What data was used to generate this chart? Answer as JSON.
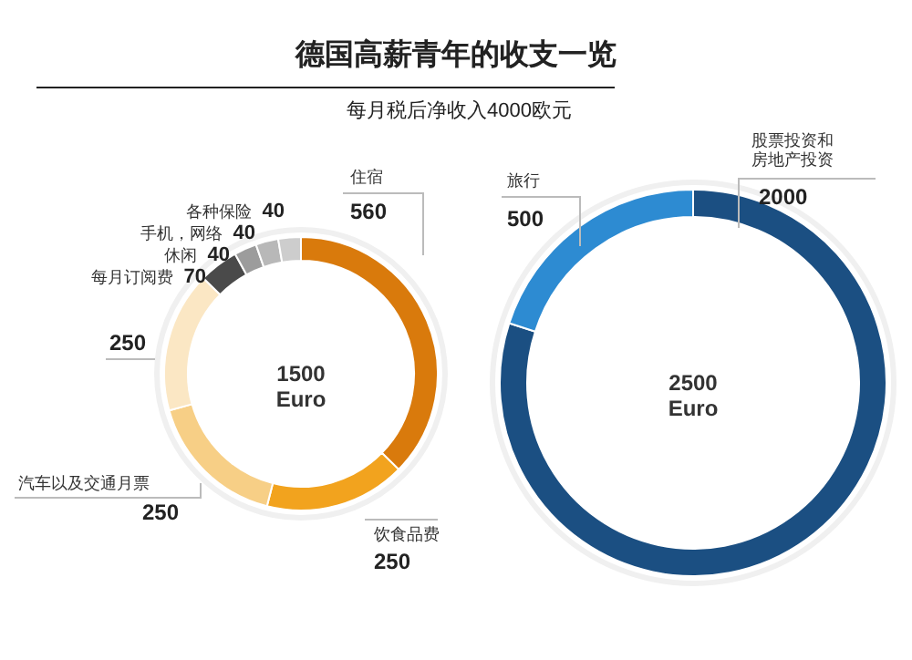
{
  "chart_data": [
    {
      "type": "donut",
      "title": "德国高薪青年的收支一览",
      "subtitle": "每月税后净收入4000欧元",
      "categories": [
        "住宿",
        "饮食品费",
        "汽车以及交通月票",
        null,
        "每月订阅费",
        "休闲",
        "手机，网络",
        "各种保险"
      ],
      "values": [
        560,
        250,
        250,
        250,
        70,
        40,
        40,
        40
      ],
      "colors": [
        "#d97a0c",
        "#f2a31e",
        "#f7cf86",
        "#fbe7c4",
        "#4a4a4a",
        "#9c9c9c",
        "#b8b8b8",
        "#cdcdcd"
      ],
      "data_labels": true,
      "annotations": [
        "1500\nEuro"
      ]
    },
    {
      "type": "donut",
      "categories": [
        "股票投资和房地产投资",
        "旅行"
      ],
      "values": [
        2000,
        500
      ],
      "colors": [
        "#1b4f82",
        "#2d8bd2"
      ],
      "data_labels": true,
      "annotations": [
        "2500\nEuro"
      ]
    }
  ]
}
